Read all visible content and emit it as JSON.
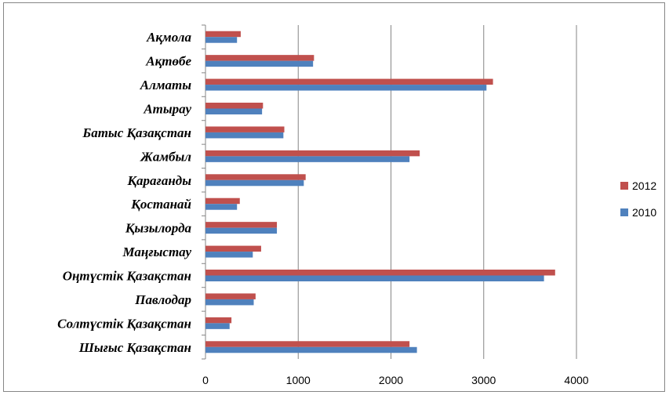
{
  "chart_data": {
    "type": "bar",
    "orientation": "horizontal",
    "categories": [
      "Ақмола",
      "Ақтөбе",
      "Алматы",
      "Атырау",
      "Батыс Қазақстан",
      "Жамбыл",
      "Қарағанды",
      "Қостанай",
      "Қызылорда",
      "Маңғыстау",
      "Оңтүстік Қазақстан",
      "Павлодар",
      "Солтүстік Қазақстан",
      "Шығыс Қазақстан"
    ],
    "series": [
      {
        "name": "2012",
        "color": "#c0504d",
        "values": [
          380,
          1170,
          3100,
          620,
          850,
          2310,
          1080,
          370,
          770,
          600,
          3770,
          540,
          280,
          2200
        ]
      },
      {
        "name": "2010",
        "color": "#4f81bd",
        "values": [
          340,
          1160,
          3030,
          610,
          840,
          2200,
          1060,
          340,
          770,
          510,
          3650,
          520,
          260,
          2280
        ]
      }
    ],
    "xlim": [
      0,
      4000
    ],
    "xticks": [
      "0",
      "1000",
      "2000",
      "3000",
      "4000"
    ],
    "grid": true,
    "legend_position": "right",
    "title": "",
    "xlabel": "",
    "ylabel": ""
  }
}
